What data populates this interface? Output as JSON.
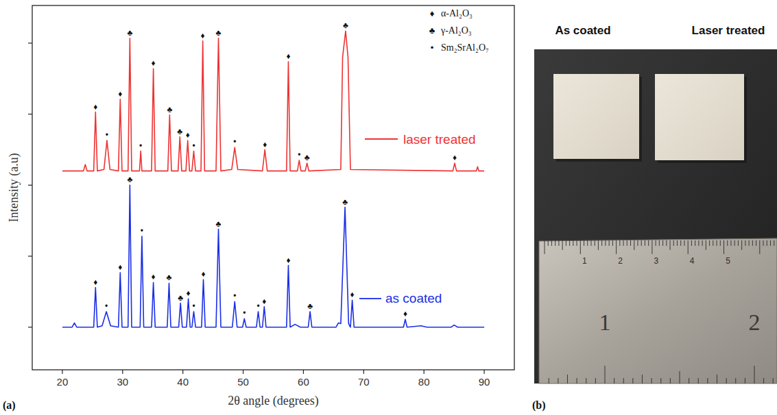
{
  "chart_data": {
    "type": "line",
    "x_label": "2θ angle (degrees)",
    "y_label": "Intensity (a.u)",
    "xlim": [
      15,
      95
    ],
    "xticks": [
      20,
      30,
      40,
      50,
      60,
      70,
      80,
      90
    ],
    "ylim": [
      0.4,
      5.53
    ],
    "yticks": [
      1,
      2,
      3,
      4,
      5
    ],
    "tick_labels": "x",
    "grid": false,
    "phases": [
      {
        "symbol": "♦",
        "name": "α-Al₂O₃"
      },
      {
        "symbol": "♣",
        "name": "γ-Al₂O₃"
      },
      {
        "symbol": "•",
        "name": "Sm₂SrAl₂O₇"
      }
    ],
    "series": [
      {
        "name": "laser treated",
        "color": "#ee3333",
        "x": [
          20,
          23.5,
          23.8,
          24.1,
          25.2,
          25.5,
          25.8,
          26.9,
          27.4,
          27.9,
          29.3,
          29.6,
          29.9,
          30.9,
          31.2,
          31.5,
          32.8,
          33,
          33.2,
          34.8,
          35.1,
          35.4,
          37.5,
          37.8,
          38.1,
          39.2,
          39.5,
          39.8,
          40.5,
          40.8,
          41.1,
          41.5,
          41.8,
          42.1,
          43,
          43.3,
          43.6,
          45.5,
          45.9,
          46.3,
          48.1,
          48.6,
          49.1,
          53.2,
          53.6,
          54,
          57.2,
          57.5,
          57.8,
          59,
          59.3,
          59.6,
          60.3,
          60.6,
          60.9,
          66.2,
          66.5,
          67,
          67.4,
          67.8,
          84.8,
          85.1,
          85.4,
          88.7,
          88.9,
          89.1,
          90
        ],
        "values": [
          3.2,
          3.2,
          3.29,
          3.2,
          3.2,
          4.03,
          3.2,
          3.22,
          3.63,
          3.22,
          3.2,
          4.21,
          3.2,
          3.2,
          5.07,
          3.2,
          3.2,
          3.48,
          3.2,
          3.2,
          4.64,
          3.2,
          3.2,
          3.99,
          3.2,
          3.2,
          3.68,
          3.2,
          3.2,
          3.63,
          3.2,
          3.2,
          3.48,
          3.2,
          3.2,
          5.03,
          3.2,
          3.2,
          5.07,
          3.2,
          3.22,
          3.53,
          3.22,
          3.2,
          3.5,
          3.2,
          3.2,
          4.74,
          3.2,
          3.2,
          3.35,
          3.2,
          3.2,
          3.31,
          3.2,
          3.22,
          4.8,
          5.17,
          4.8,
          3.22,
          3.2,
          3.31,
          3.2,
          3.2,
          3.26,
          3.2,
          3.2
        ],
        "markers": [
          {
            "x": 25.5,
            "symbol": "♦"
          },
          {
            "x": 27.4,
            "symbol": "•"
          },
          {
            "x": 29.6,
            "symbol": "♦"
          },
          {
            "x": 31.2,
            "symbol": "♣"
          },
          {
            "x": 33,
            "symbol": "•"
          },
          {
            "x": 35.1,
            "symbol": "♦"
          },
          {
            "x": 37.8,
            "symbol": "♣"
          },
          {
            "x": 39.5,
            "symbol": "♣"
          },
          {
            "x": 40.8,
            "symbol": "♦"
          },
          {
            "x": 41.8,
            "symbol": "•"
          },
          {
            "x": 43.3,
            "symbol": "♦"
          },
          {
            "x": 45.9,
            "symbol": "♣"
          },
          {
            "x": 48.6,
            "symbol": "•"
          },
          {
            "x": 53.6,
            "symbol": "♦"
          },
          {
            "x": 57.5,
            "symbol": "♦"
          },
          {
            "x": 59.3,
            "symbol": "•"
          },
          {
            "x": 60.6,
            "symbol": "♣"
          },
          {
            "x": 67,
            "symbol": "♣"
          },
          {
            "x": 85.1,
            "symbol": "♦"
          }
        ]
      },
      {
        "name": "as coated",
        "color": "#1a2ee6",
        "x": [
          20,
          21.6,
          22,
          22.4,
          24,
          25.2,
          25.5,
          25.8,
          26.6,
          27.3,
          28,
          29.3,
          29.6,
          29.9,
          30.9,
          31.2,
          31.5,
          32.9,
          33.2,
          33.5,
          34.8,
          35.1,
          35.4,
          37.4,
          37.7,
          38,
          39.3,
          39.6,
          39.9,
          40.6,
          40.9,
          41.2,
          41.5,
          41.8,
          42.1,
          43.1,
          43.4,
          43.7,
          45.5,
          45.9,
          46.3,
          48.2,
          48.6,
          49,
          49.9,
          50.2,
          50.5,
          52.2,
          52.5,
          52.8,
          53.2,
          53.5,
          53.8,
          57.2,
          57.5,
          57.8,
          58.6,
          59.5,
          60.8,
          61.1,
          61.4,
          65.4,
          65.8,
          66.2,
          66.9,
          67.5,
          67.8,
          68.1,
          68.4,
          76.6,
          76.9,
          77.2,
          79.5,
          80.5,
          84.5,
          85,
          85.6,
          90
        ],
        "values": [
          1.0,
          1.0,
          1.06,
          1.0,
          1.0,
          1.0,
          1.56,
          1.0,
          1.02,
          1.22,
          1.02,
          1.0,
          1.77,
          1.0,
          1.0,
          3.0,
          1.0,
          1.0,
          2.28,
          1.0,
          1.0,
          1.63,
          1.0,
          1.0,
          1.62,
          1.0,
          1.0,
          1.34,
          1.0,
          1.0,
          1.4,
          1.0,
          1.0,
          1.22,
          1.0,
          1.0,
          1.67,
          1.0,
          1.0,
          2.38,
          1.0,
          1.0,
          1.36,
          1.0,
          1.0,
          1.12,
          1.0,
          1.0,
          1.22,
          1.0,
          1.0,
          1.29,
          1.0,
          1.0,
          1.87,
          1.0,
          1.04,
          1.0,
          1.0,
          1.22,
          1.0,
          1.0,
          1.06,
          1.05,
          2.69,
          1.05,
          1.0,
          1.38,
          1.0,
          1.0,
          1.11,
          1.0,
          1.02,
          1.0,
          1.0,
          1.03,
          1.0,
          1.0
        ],
        "markers": [
          {
            "x": 25.5,
            "symbol": "♦"
          },
          {
            "x": 27.3,
            "symbol": "•"
          },
          {
            "x": 29.6,
            "symbol": "♦"
          },
          {
            "x": 31.2,
            "symbol": "♣"
          },
          {
            "x": 33.2,
            "symbol": "•"
          },
          {
            "x": 35.1,
            "symbol": "♦"
          },
          {
            "x": 37.7,
            "symbol": "♣"
          },
          {
            "x": 39.6,
            "symbol": "♣"
          },
          {
            "x": 40.9,
            "symbol": "♦"
          },
          {
            "x": 41.8,
            "symbol": "•"
          },
          {
            "x": 43.4,
            "symbol": "♦"
          },
          {
            "x": 45.9,
            "symbol": "♣"
          },
          {
            "x": 48.6,
            "symbol": "•"
          },
          {
            "x": 50.2,
            "symbol": "•"
          },
          {
            "x": 52.5,
            "symbol": "•"
          },
          {
            "x": 53.5,
            "symbol": "♦"
          },
          {
            "x": 57.5,
            "symbol": "♦"
          },
          {
            "x": 61.1,
            "symbol": "♣"
          },
          {
            "x": 66.9,
            "symbol": "♣"
          },
          {
            "x": 68.1,
            "symbol": "♦"
          },
          {
            "x": 76.9,
            "symbol": "♦"
          }
        ]
      }
    ]
  },
  "panel_labels": [
    "(a)",
    "(b)"
  ],
  "photo": {
    "labels": [
      "As coated",
      "Laser treated"
    ],
    "ruler_cm": [
      1,
      2,
      3,
      4,
      5
    ],
    "ruler_inch": [
      1,
      2
    ]
  }
}
